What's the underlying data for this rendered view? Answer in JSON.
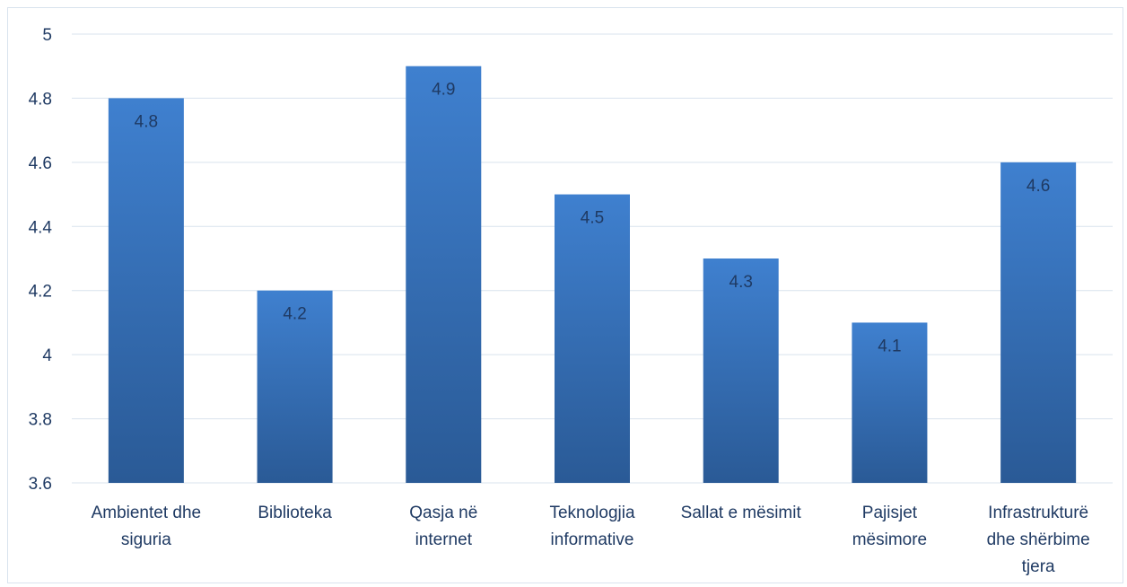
{
  "chart_data": {
    "type": "bar",
    "categories": [
      [
        "Ambientet dhe",
        "siguria"
      ],
      [
        "Biblioteka"
      ],
      [
        "Qasja në",
        "internet"
      ],
      [
        "Teknologjia",
        "informative"
      ],
      [
        "Sallat e mësimit"
      ],
      [
        "Pajisjet",
        "mësimore"
      ],
      [
        "Infrastrukturë",
        "dhe shërbime",
        "tjera"
      ]
    ],
    "values": [
      4.8,
      4.2,
      4.9,
      4.5,
      4.3,
      4.1,
      4.6
    ],
    "data_labels": [
      "4.8",
      "4.2",
      "4.9",
      "4.5",
      "4.3",
      "4.1",
      "4.6"
    ],
    "ylim": [
      3.6,
      5
    ],
    "yticks": [
      "3.6",
      "3.8",
      "4",
      "4.2",
      "4.4",
      "4.6",
      "4.8",
      "5"
    ],
    "grid": true,
    "legend": "none",
    "colors": {
      "bar_top": "#3f80cf",
      "bar_bottom": "#2a5a96",
      "grid": "#d9e3ee",
      "text": "#1f3a63"
    }
  }
}
